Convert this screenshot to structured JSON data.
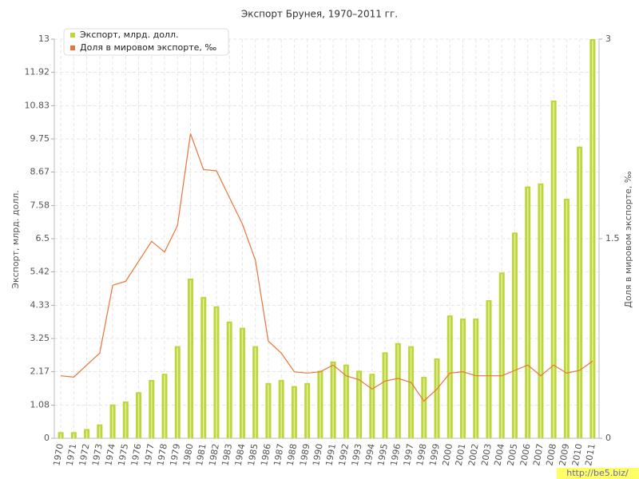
{
  "chart_data": {
    "type": "bar-line",
    "title": "Экспорт Брунея, 1970–2011 гг.",
    "y_label": "Экспорт, млрд. долл.",
    "y2_label": "Доля в мировом экспорте, ‰",
    "watermark": "http://be5.biz/",
    "categories": [
      "1970",
      "1971",
      "1972",
      "1973",
      "1974",
      "1975",
      "1976",
      "1977",
      "1978",
      "1979",
      "1980",
      "1981",
      "1982",
      "1983",
      "1984",
      "1985",
      "1986",
      "1987",
      "1988",
      "1989",
      "1990",
      "1991",
      "1992",
      "1993",
      "1994",
      "1995",
      "1996",
      "1997",
      "1998",
      "1999",
      "2000",
      "2001",
      "2002",
      "2003",
      "2004",
      "2005",
      "2006",
      "2007",
      "2008",
      "2009",
      "2010",
      "2011"
    ],
    "series": [
      {
        "name": "Экспорт, млрд. долл.",
        "color": "#bcd63c",
        "type": "bar",
        "values": [
          0.2,
          0.2,
          0.3,
          0.45,
          1.1,
          1.2,
          1.5,
          1.9,
          2.1,
          3.0,
          5.2,
          4.6,
          4.3,
          3.8,
          3.6,
          3.0,
          1.8,
          1.9,
          1.7,
          1.8,
          2.2,
          2.5,
          2.4,
          2.2,
          2.1,
          2.8,
          3.1,
          3.0,
          2.0,
          2.6,
          4.0,
          3.9,
          3.9,
          4.5,
          5.4,
          6.7,
          8.2,
          8.3,
          11.0,
          7.8,
          9.5,
          13.0
        ]
      },
      {
        "name": "Доля в мировом экспорте, ‰",
        "color": "#e8743b",
        "type": "line",
        "axis": "y2",
        "values": [
          0.47,
          0.46,
          0.55,
          0.64,
          1.15,
          1.18,
          1.33,
          1.48,
          1.4,
          1.6,
          2.29,
          2.02,
          2.01,
          1.81,
          1.61,
          1.34,
          0.73,
          0.64,
          0.5,
          0.49,
          0.5,
          0.55,
          0.47,
          0.44,
          0.37,
          0.43,
          0.45,
          0.42,
          0.28,
          0.37,
          0.49,
          0.5,
          0.47,
          0.47,
          0.47,
          0.51,
          0.55,
          0.47,
          0.55,
          0.49,
          0.51,
          0.58
        ]
      }
    ],
    "ylim": [
      0,
      13
    ],
    "yticks": [
      0,
      1.08,
      2.17,
      3.25,
      4.33,
      5.42,
      6.5,
      7.58,
      8.67,
      9.75,
      10.83,
      11.92,
      13
    ],
    "y2lim": [
      0,
      3
    ],
    "y2ticks": [
      0,
      1.5,
      3
    ],
    "grid": true,
    "legend": "top-left"
  }
}
